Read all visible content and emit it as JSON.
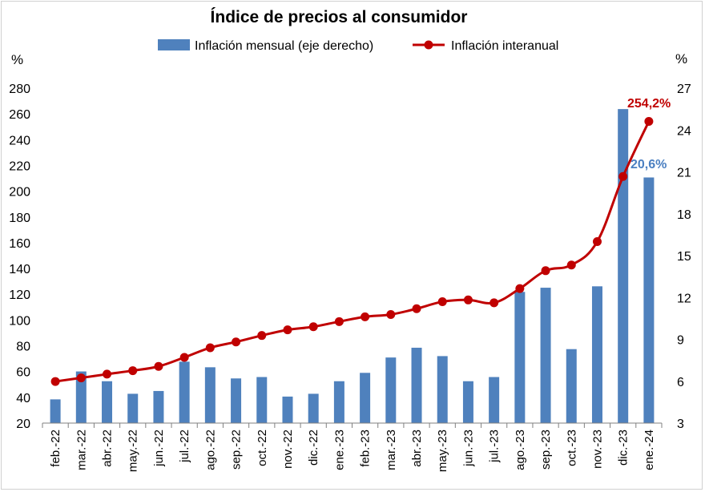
{
  "chart_data": {
    "type": "bar+line",
    "title": "Índice de precios al consumidor",
    "categories": [
      "feb.-22",
      "mar.-22",
      "abr.-22",
      "may.-22",
      "jun.-22",
      "jul.-22",
      "ago.-22",
      "sep.-22",
      "oct.-22",
      "nov.-22",
      "dic.-22",
      "ene.-23",
      "feb.-23",
      "mar.-23",
      "abr.-23",
      "may.-23",
      "jun.-23",
      "jul.-23",
      "ago.-23",
      "sep.-23",
      "oct.-23",
      "nov.-23",
      "dic.-23",
      "ene.-24"
    ],
    "series": [
      {
        "name": "Inflación mensual (eje derecho)",
        "type": "bar",
        "axis": "right",
        "color": "#4f81bd",
        "values": [
          4.7,
          6.7,
          6.0,
          5.1,
          5.3,
          7.4,
          7.0,
          6.2,
          6.3,
          4.9,
          5.1,
          6.0,
          6.6,
          7.7,
          8.4,
          7.8,
          6.0,
          6.3,
          12.4,
          12.7,
          8.3,
          12.8,
          25.5,
          20.6
        ]
      },
      {
        "name": "Inflación interanual",
        "type": "line",
        "axis": "left",
        "color": "#c00000",
        "values": [
          52.3,
          55.1,
          58.0,
          60.7,
          64.0,
          71.0,
          78.5,
          83.0,
          88.0,
          92.4,
          94.8,
          98.8,
          102.5,
          104.3,
          108.8,
          114.2,
          115.6,
          113.4,
          124.4,
          138.3,
          142.7,
          160.9,
          211.4,
          254.2
        ]
      }
    ],
    "left_axis": {
      "unit": "%",
      "ylim": [
        20,
        280
      ],
      "ticks": [
        "20",
        "40",
        "60",
        "80",
        "100",
        "120",
        "140",
        "160",
        "180",
        "200",
        "220",
        "240",
        "260",
        "280"
      ]
    },
    "right_axis": {
      "unit": "%",
      "ylim": [
        3,
        27
      ],
      "ticks": [
        "3",
        "6",
        "9",
        "12",
        "15",
        "18",
        "21",
        "24",
        "27"
      ]
    },
    "annotations": {
      "last_line_label": "254,2%",
      "last_bar_label": "20,6%"
    },
    "legend": "top-center",
    "grid": false
  }
}
